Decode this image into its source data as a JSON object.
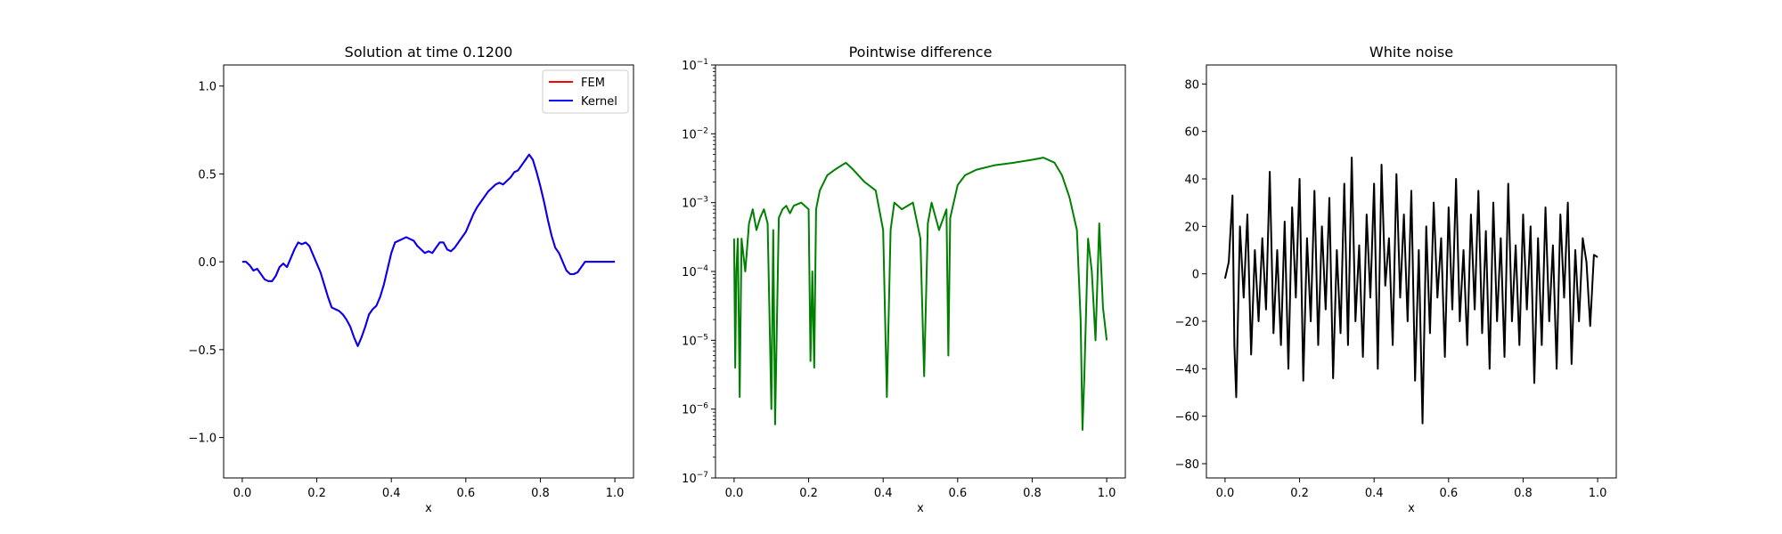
{
  "chart_data": [
    {
      "type": "line",
      "title": "Solution at time 0.1200",
      "xlabel": "x",
      "ylabel": "",
      "xlim": [
        -0.05,
        1.05
      ],
      "ylim": [
        -1.23,
        1.12
      ],
      "xticks": [
        "0.0",
        "0.2",
        "0.4",
        "0.6",
        "0.8",
        "1.0"
      ],
      "yticks": [
        "−1.0",
        "−0.5",
        "0.0",
        "0.5",
        "1.0"
      ],
      "legend": {
        "position": "top-right",
        "entries": [
          "FEM",
          "Kernel"
        ]
      },
      "series": [
        {
          "name": "FEM",
          "color": "#ff0000",
          "x": [
            0.0,
            0.01,
            0.02,
            0.03,
            0.04,
            0.05,
            0.06,
            0.07,
            0.08,
            0.09,
            0.1,
            0.11,
            0.12,
            0.13,
            0.14,
            0.15,
            0.16,
            0.17,
            0.18,
            0.19,
            0.2,
            0.21,
            0.22,
            0.23,
            0.24,
            0.25,
            0.26,
            0.27,
            0.28,
            0.29,
            0.3,
            0.31,
            0.32,
            0.33,
            0.34,
            0.35,
            0.36,
            0.37,
            0.38,
            0.39,
            0.4,
            0.41,
            0.42,
            0.43,
            0.44,
            0.45,
            0.46,
            0.47,
            0.48,
            0.49,
            0.5,
            0.51,
            0.52,
            0.53,
            0.54,
            0.55,
            0.56,
            0.57,
            0.58,
            0.59,
            0.6,
            0.61,
            0.62,
            0.63,
            0.64,
            0.65,
            0.66,
            0.67,
            0.68,
            0.69,
            0.7,
            0.71,
            0.72,
            0.73,
            0.74,
            0.75,
            0.76,
            0.77,
            0.78,
            0.79,
            0.8,
            0.81,
            0.82,
            0.83,
            0.84,
            0.85,
            0.86,
            0.87,
            0.88,
            0.89,
            0.9,
            0.91,
            0.92,
            0.93,
            0.94,
            0.95,
            0.96,
            0.97,
            0.98,
            0.99,
            1.0
          ],
          "y": [
            0.0,
            0.0,
            -0.02,
            -0.05,
            -0.04,
            -0.07,
            -0.1,
            -0.11,
            -0.11,
            -0.08,
            -0.03,
            -0.01,
            -0.03,
            0.02,
            0.07,
            0.11,
            0.1,
            0.11,
            0.09,
            0.04,
            -0.01,
            -0.06,
            -0.13,
            -0.2,
            -0.26,
            -0.27,
            -0.28,
            -0.3,
            -0.33,
            -0.37,
            -0.43,
            -0.48,
            -0.43,
            -0.37,
            -0.3,
            -0.27,
            -0.25,
            -0.2,
            -0.13,
            -0.04,
            0.05,
            0.11,
            0.12,
            0.13,
            0.14,
            0.13,
            0.12,
            0.09,
            0.07,
            0.05,
            0.06,
            0.05,
            0.08,
            0.11,
            0.11,
            0.07,
            0.06,
            0.08,
            0.11,
            0.14,
            0.17,
            0.22,
            0.27,
            0.31,
            0.34,
            0.37,
            0.4,
            0.42,
            0.44,
            0.45,
            0.44,
            0.46,
            0.48,
            0.51,
            0.52,
            0.55,
            0.58,
            0.61,
            0.58,
            0.51,
            0.43,
            0.34,
            0.24,
            0.15,
            0.08,
            0.05,
            0.0,
            -0.05,
            -0.07,
            -0.07,
            -0.06,
            -0.03,
            0.0,
            0.0,
            0.0,
            0.0,
            0.0,
            0.0,
            0.0,
            0.0,
            0.0
          ]
        },
        {
          "name": "Kernel",
          "color": "#0000ff",
          "x": [
            0.0,
            0.01,
            0.02,
            0.03,
            0.04,
            0.05,
            0.06,
            0.07,
            0.08,
            0.09,
            0.1,
            0.11,
            0.12,
            0.13,
            0.14,
            0.15,
            0.16,
            0.17,
            0.18,
            0.19,
            0.2,
            0.21,
            0.22,
            0.23,
            0.24,
            0.25,
            0.26,
            0.27,
            0.28,
            0.29,
            0.3,
            0.31,
            0.32,
            0.33,
            0.34,
            0.35,
            0.36,
            0.37,
            0.38,
            0.39,
            0.4,
            0.41,
            0.42,
            0.43,
            0.44,
            0.45,
            0.46,
            0.47,
            0.48,
            0.49,
            0.5,
            0.51,
            0.52,
            0.53,
            0.54,
            0.55,
            0.56,
            0.57,
            0.58,
            0.59,
            0.6,
            0.61,
            0.62,
            0.63,
            0.64,
            0.65,
            0.66,
            0.67,
            0.68,
            0.69,
            0.7,
            0.71,
            0.72,
            0.73,
            0.74,
            0.75,
            0.76,
            0.77,
            0.78,
            0.79,
            0.8,
            0.81,
            0.82,
            0.83,
            0.84,
            0.85,
            0.86,
            0.87,
            0.88,
            0.89,
            0.9,
            0.91,
            0.92,
            0.93,
            0.94,
            0.95,
            0.96,
            0.97,
            0.98,
            0.99,
            1.0
          ],
          "y": [
            0.0,
            0.0,
            -0.02,
            -0.05,
            -0.04,
            -0.07,
            -0.1,
            -0.11,
            -0.11,
            -0.08,
            -0.03,
            -0.01,
            -0.03,
            0.02,
            0.07,
            0.11,
            0.1,
            0.11,
            0.09,
            0.04,
            -0.01,
            -0.06,
            -0.13,
            -0.2,
            -0.26,
            -0.27,
            -0.28,
            -0.3,
            -0.33,
            -0.37,
            -0.43,
            -0.48,
            -0.43,
            -0.37,
            -0.3,
            -0.27,
            -0.25,
            -0.2,
            -0.13,
            -0.04,
            0.05,
            0.11,
            0.12,
            0.13,
            0.14,
            0.13,
            0.12,
            0.09,
            0.07,
            0.05,
            0.06,
            0.05,
            0.08,
            0.11,
            0.11,
            0.07,
            0.06,
            0.08,
            0.11,
            0.14,
            0.17,
            0.22,
            0.27,
            0.31,
            0.34,
            0.37,
            0.4,
            0.42,
            0.44,
            0.45,
            0.44,
            0.46,
            0.48,
            0.51,
            0.52,
            0.55,
            0.58,
            0.61,
            0.58,
            0.51,
            0.43,
            0.34,
            0.24,
            0.15,
            0.08,
            0.05,
            0.0,
            -0.05,
            -0.07,
            -0.07,
            -0.06,
            -0.03,
            0.0,
            0.0,
            0.0,
            0.0,
            0.0,
            0.0,
            0.0,
            0.0,
            0.0
          ]
        }
      ]
    },
    {
      "type": "line",
      "title": "Pointwise difference",
      "xlabel": "x",
      "ylabel": "",
      "yscale": "log",
      "xlim": [
        -0.05,
        1.05
      ],
      "ylim": [
        1e-07,
        0.1
      ],
      "xticks": [
        "0.0",
        "0.2",
        "0.4",
        "0.6",
        "0.8",
        "1.0"
      ],
      "yticks": [
        {
          "base": "10",
          "exp": "−7"
        },
        {
          "base": "10",
          "exp": "−6"
        },
        {
          "base": "10",
          "exp": "−5"
        },
        {
          "base": "10",
          "exp": "−4"
        },
        {
          "base": "10",
          "exp": "−3"
        },
        {
          "base": "10",
          "exp": "−2"
        },
        {
          "base": "10",
          "exp": "−1"
        }
      ],
      "series": [
        {
          "color": "#008000",
          "x": [
            0.0,
            0.003,
            0.006,
            0.01,
            0.015,
            0.02,
            0.03,
            0.04,
            0.05,
            0.06,
            0.07,
            0.08,
            0.09,
            0.1,
            0.105,
            0.11,
            0.12,
            0.13,
            0.14,
            0.15,
            0.16,
            0.18,
            0.2,
            0.205,
            0.21,
            0.215,
            0.22,
            0.23,
            0.25,
            0.27,
            0.3,
            0.32,
            0.35,
            0.38,
            0.4,
            0.41,
            0.42,
            0.43,
            0.45,
            0.48,
            0.5,
            0.51,
            0.52,
            0.53,
            0.55,
            0.57,
            0.575,
            0.58,
            0.6,
            0.62,
            0.65,
            0.7,
            0.75,
            0.8,
            0.83,
            0.86,
            0.88,
            0.9,
            0.92,
            0.93,
            0.935,
            0.94,
            0.95,
            0.96,
            0.97,
            0.98,
            0.99,
            1.0
          ],
          "y": [
            0.0003,
            4e-06,
            0.0001,
            0.0003,
            1.5e-06,
            0.0003,
            0.0001,
            0.0005,
            0.0008,
            0.0004,
            0.0006,
            0.0008,
            0.0005,
            1e-06,
            0.0004,
            6e-07,
            0.0006,
            0.0008,
            0.0009,
            0.0007,
            0.0009,
            0.001,
            0.0008,
            5e-06,
            0.0001,
            4e-06,
            0.0008,
            0.0015,
            0.0025,
            0.003,
            0.0038,
            0.003,
            0.002,
            0.0015,
            0.0004,
            1.5e-06,
            0.0004,
            0.001,
            0.0008,
            0.001,
            0.0003,
            3e-06,
            0.0005,
            0.001,
            0.0004,
            0.0008,
            6e-06,
            0.0006,
            0.0018,
            0.0025,
            0.003,
            0.0035,
            0.0038,
            0.0042,
            0.0045,
            0.0038,
            0.0025,
            0.0012,
            0.0004,
            2e-05,
            5e-07,
            3e-06,
            0.0003,
            0.0001,
            1e-05,
            0.0005,
            3e-05,
            1e-05
          ]
        }
      ]
    },
    {
      "type": "line",
      "title": "White noise",
      "xlabel": "x",
      "ylabel": "",
      "xlim": [
        -0.05,
        1.05
      ],
      "ylim": [
        -86,
        88
      ],
      "xticks": [
        "0.0",
        "0.2",
        "0.4",
        "0.6",
        "0.8",
        "1.0"
      ],
      "yticks": [
        "−80",
        "−60",
        "−40",
        "−20",
        "0",
        "20",
        "40",
        "60",
        "80"
      ],
      "series": [
        {
          "color": "#000000",
          "x": [
            0.0,
            0.01,
            0.02,
            0.025,
            0.03,
            0.04,
            0.05,
            0.06,
            0.07,
            0.08,
            0.09,
            0.1,
            0.11,
            0.12,
            0.13,
            0.14,
            0.15,
            0.16,
            0.17,
            0.18,
            0.19,
            0.2,
            0.21,
            0.22,
            0.23,
            0.24,
            0.25,
            0.26,
            0.27,
            0.28,
            0.29,
            0.3,
            0.31,
            0.32,
            0.33,
            0.34,
            0.35,
            0.36,
            0.37,
            0.38,
            0.39,
            0.4,
            0.41,
            0.42,
            0.43,
            0.44,
            0.45,
            0.46,
            0.47,
            0.48,
            0.49,
            0.5,
            0.51,
            0.52,
            0.53,
            0.54,
            0.55,
            0.56,
            0.57,
            0.58,
            0.59,
            0.6,
            0.61,
            0.62,
            0.63,
            0.64,
            0.65,
            0.66,
            0.67,
            0.68,
            0.69,
            0.7,
            0.71,
            0.72,
            0.73,
            0.74,
            0.75,
            0.76,
            0.77,
            0.78,
            0.79,
            0.8,
            0.81,
            0.82,
            0.83,
            0.84,
            0.85,
            0.86,
            0.87,
            0.88,
            0.89,
            0.9,
            0.91,
            0.92,
            0.93,
            0.94,
            0.95,
            0.96,
            0.97,
            0.98,
            0.99,
            1.0
          ],
          "y": [
            -2,
            5,
            33,
            -30,
            -52,
            20,
            -10,
            25,
            -34,
            10,
            -20,
            15,
            -15,
            43,
            -25,
            10,
            -30,
            22,
            -40,
            28,
            -10,
            40,
            -45,
            15,
            -20,
            35,
            -30,
            20,
            -15,
            32,
            -44,
            10,
            -25,
            38,
            -30,
            49,
            -20,
            12,
            -35,
            25,
            -10,
            38,
            -40,
            46,
            -5,
            15,
            -30,
            42,
            -10,
            25,
            -20,
            35,
            -45,
            10,
            -63,
            20,
            -25,
            30,
            -10,
            15,
            -35,
            28,
            -15,
            40,
            -20,
            10,
            -30,
            25,
            -15,
            35,
            -25,
            18,
            -40,
            30,
            -20,
            15,
            -35,
            38,
            -20,
            12,
            -30,
            25,
            -15,
            20,
            -46,
            15,
            -30,
            28,
            -20,
            12,
            -40,
            25,
            -10,
            30,
            -38,
            10,
            -20,
            15,
            5,
            -22,
            8,
            7
          ]
        }
      ]
    }
  ]
}
